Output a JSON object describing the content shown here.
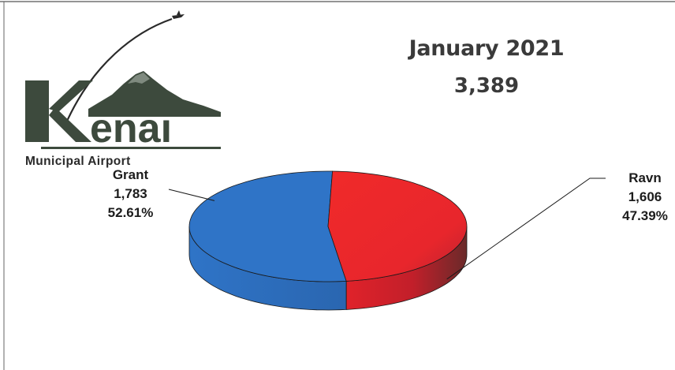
{
  "logo": {
    "wordmark": "enai",
    "subtitle": "Municipal Airport",
    "icon": "kenai-mountain-plane-logo"
  },
  "header": {
    "title": "January 2021",
    "total": "3,389"
  },
  "chart_data": {
    "type": "pie",
    "style": "3d",
    "total": 3389,
    "slices": [
      {
        "name": "Grant",
        "value": 1783,
        "value_label": "1,783",
        "percent": 52.61,
        "percent_label": "52.61%",
        "color": "#2f74c7"
      },
      {
        "name": "Ravn",
        "value": 1606,
        "value_label": "1,606",
        "percent": 47.39,
        "percent_label": "47.39%",
        "color": "#ee2a2a"
      }
    ],
    "legend": "none",
    "grid": false
  }
}
